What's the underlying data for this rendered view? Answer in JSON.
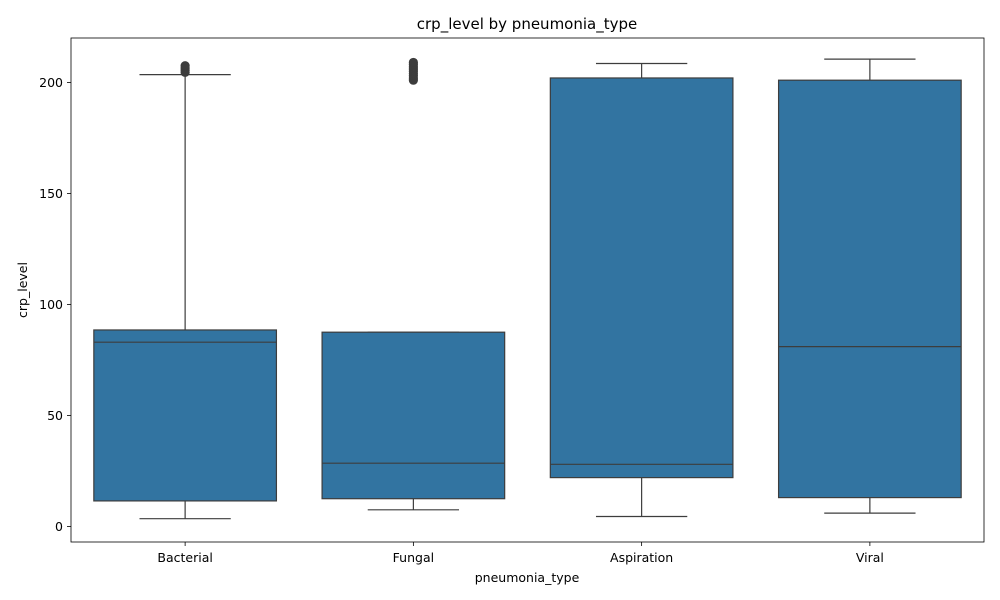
{
  "chart_data": {
    "type": "box",
    "title": "crp_level by pneumonia_type",
    "xlabel": "pneumonia_type",
    "ylabel": "crp_level",
    "categories": [
      "Bacterial",
      "Fungal",
      "Aspiration",
      "Viral"
    ],
    "y_ticks": [
      0,
      50,
      100,
      150,
      200
    ],
    "ylim": [
      -7,
      220
    ],
    "grid": false,
    "box_color": "#3274a1",
    "line_color": "#3d3d3d",
    "boxes": [
      {
        "category": "Bacterial",
        "whisker_low": 3.5,
        "q1": 11.5,
        "median": 83.0,
        "q3": 88.5,
        "whisker_high": 203.5,
        "outliers": [
          204.5,
          205.5,
          206.5,
          207.5
        ]
      },
      {
        "category": "Fungal",
        "whisker_low": 7.5,
        "q1": 12.5,
        "median": 28.5,
        "q3": 87.5,
        "whisker_high": 87.5,
        "outliers": [
          201.0,
          202.0,
          203.0,
          204.0,
          205.0,
          206.0,
          207.0,
          208.0,
          209.0
        ]
      },
      {
        "category": "Aspiration",
        "whisker_low": 4.5,
        "q1": 22.0,
        "median": 28.0,
        "q3": 202.0,
        "whisker_high": 208.5,
        "outliers": []
      },
      {
        "category": "Viral",
        "whisker_low": 6.0,
        "q1": 13.0,
        "median": 81.0,
        "q3": 201.0,
        "whisker_high": 210.5,
        "outliers": []
      }
    ]
  }
}
